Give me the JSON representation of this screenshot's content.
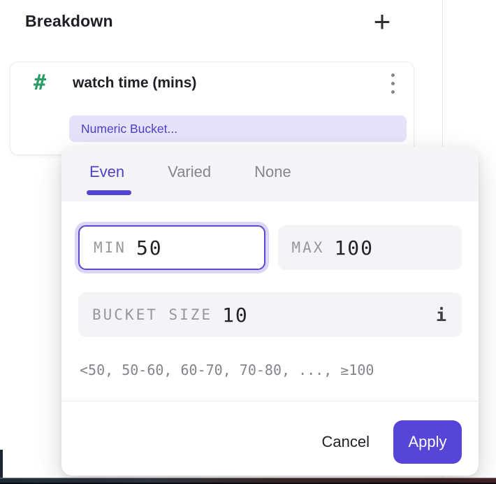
{
  "colors": {
    "accent": "#5645d6",
    "accent_text": "#4e42cd",
    "tab_underline": "#5346cf",
    "pill_bg": "#e6e2fa",
    "pill_text": "#4b40c6",
    "hash_green": "#2d9d68",
    "field_bg": "#f4f3f5",
    "label_gray": "#98969e",
    "header_bg": "#f5f4f6"
  },
  "icons": {
    "add": "+",
    "numeric_type": "#",
    "info": "i"
  },
  "panel": {
    "title": "Breakdown"
  },
  "card": {
    "title": "watch time (mins)",
    "bucket_pill": "Numeric Bucket..."
  },
  "popover": {
    "tabs": [
      {
        "label": "Even",
        "active": true
      },
      {
        "label": "Varied",
        "active": false
      },
      {
        "label": "None",
        "active": false
      }
    ],
    "min": {
      "label": "MIN",
      "value": "50"
    },
    "max": {
      "label": "MAX",
      "value": "100"
    },
    "bucket_size": {
      "label": "BUCKET SIZE",
      "value": "10"
    },
    "preview": "<50, 50-60, 60-70, 70-80, ..., ≥100",
    "cancel_label": "Cancel",
    "apply_label": "Apply"
  }
}
